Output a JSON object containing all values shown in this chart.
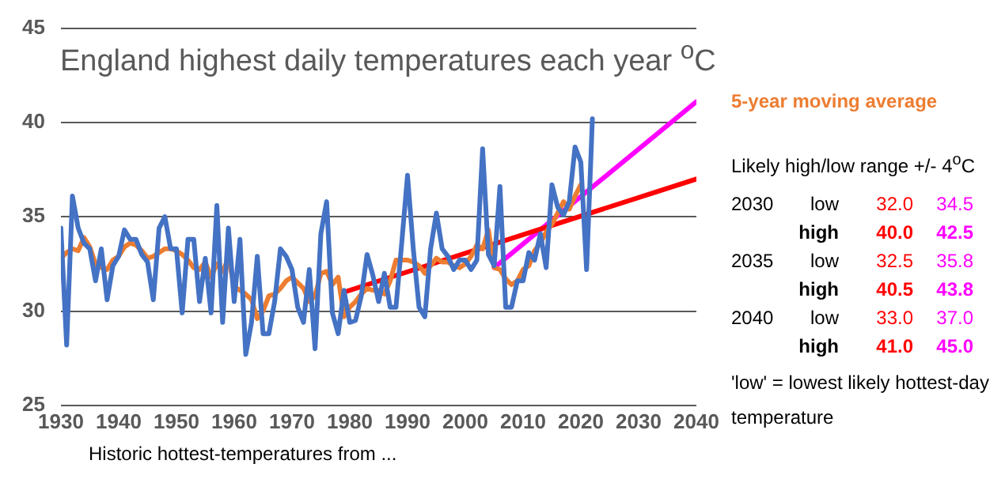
{
  "chart_data": {
    "type": "line",
    "title": "England highest daily temperatures each year $^{o}$C",
    "xlim": [
      1930,
      2040
    ],
    "xticks": [
      1930,
      1940,
      1950,
      1960,
      1970,
      1980,
      1990,
      2000,
      2010,
      2020,
      2030,
      2040
    ],
    "ylim": [
      25,
      45
    ],
    "yticks": [
      25,
      30,
      35,
      40,
      45
    ],
    "grid": "y",
    "marker": "none",
    "line_style": "solid",
    "series": [
      {
        "color": "#4472c4",
        "x": [
          1930,
          1931,
          1932,
          1933,
          1934,
          1935,
          1936,
          1937,
          1938,
          1939,
          1940,
          1941,
          1942,
          1943,
          1944,
          1945,
          1946,
          1947,
          1948,
          1949,
          1950,
          1951,
          1952,
          1953,
          1954,
          1955,
          1956,
          1957,
          1958,
          1959,
          1960,
          1961,
          1962,
          1963,
          1964,
          1965,
          1966,
          1967,
          1968,
          1969,
          1970,
          1971,
          1972,
          1973,
          1974,
          1975,
          1976,
          1977,
          1978,
          1979,
          1980,
          1981,
          1982,
          1983,
          1984,
          1985,
          1986,
          1987,
          1988,
          1989,
          1990,
          1991,
          1992,
          1993,
          1994,
          1995,
          1996,
          1997,
          1998,
          1999,
          2000,
          2001,
          2002,
          2003,
          2004,
          2005,
          2006,
          2007,
          2008,
          2009,
          2010,
          2011,
          2012,
          2013,
          2014,
          2015,
          2016,
          2017,
          2018,
          2019,
          2020,
          2021,
          2022
        ],
        "values": [
          34.4,
          28.2,
          36.1,
          34.4,
          33.6,
          33.3,
          31.6,
          33.3,
          30.6,
          32.4,
          32.9,
          34.3,
          33.8,
          33.8,
          33.0,
          32.6,
          30.6,
          34.4,
          35.0,
          33.3,
          33.3,
          29.9,
          33.8,
          33.8,
          30.5,
          32.8,
          29.9,
          35.6,
          29.4,
          34.4,
          30.5,
          33.8,
          27.7,
          29.4,
          32.9,
          28.8,
          28.8,
          30.5,
          33.3,
          32.9,
          32.2,
          30.2,
          29.4,
          32.2,
          28.0,
          34.1,
          35.8,
          29.9,
          28.8,
          31.1,
          29.4,
          29.5,
          30.8,
          33.0,
          31.9,
          30.5,
          32.0,
          30.2,
          30.2,
          33.6,
          37.2,
          33.3,
          30.2,
          29.7,
          33.3,
          35.2,
          33.3,
          32.9,
          32.2,
          32.7,
          32.7,
          32.2,
          32.7,
          38.6,
          33.0,
          32.4,
          36.6,
          30.2,
          30.2,
          31.6,
          31.6,
          33.1,
          32.7,
          34.1,
          32.3,
          36.7,
          35.5,
          35.1,
          35.8,
          38.7,
          37.9,
          32.2,
          40.2
        ]
      },
      {
        "name": "5-year moving average",
        "color": "#ed7d31",
        "x": [
          1930,
          1931,
          1932,
          1933,
          1934,
          1935,
          1936,
          1937,
          1938,
          1939,
          1940,
          1941,
          1942,
          1943,
          1944,
          1945,
          1946,
          1947,
          1948,
          1949,
          1950,
          1951,
          1952,
          1953,
          1954,
          1955,
          1956,
          1957,
          1958,
          1959,
          1960,
          1961,
          1962,
          1963,
          1964,
          1965,
          1966,
          1967,
          1968,
          1969,
          1970,
          1971,
          1972,
          1973,
          1974,
          1975,
          1976,
          1977,
          1978,
          1979,
          1980,
          1981,
          1982,
          1983,
          1984,
          1985,
          1986,
          1987,
          1988,
          1989,
          1990,
          1991,
          1992,
          1993,
          1994,
          1995,
          1996,
          1997,
          1998,
          1999,
          2000,
          2001,
          2002,
          2003,
          2004,
          2005,
          2006,
          2007,
          2008,
          2009,
          2010,
          2011,
          2012,
          2013,
          2014,
          2015,
          2016,
          2017,
          2018,
          2019,
          2020
        ],
        "values": [
          32.8,
          33.1,
          33.3,
          33.2,
          33.9,
          33.4,
          32.5,
          32.3,
          32.2,
          32.7,
          32.9,
          33.4,
          33.6,
          33.5,
          33.2,
          32.8,
          32.9,
          33.1,
          33.3,
          33.3,
          33.2,
          33.0,
          32.7,
          32.3,
          32.2,
          32.6,
          31.8,
          32.5,
          32.1,
          32.8,
          31.3,
          31.1,
          30.9,
          30.6,
          29.6,
          30.0,
          30.8,
          30.9,
          31.2,
          31.6,
          31.8,
          31.5,
          31.2,
          30.5,
          30.8,
          32.0,
          32.1,
          31.4,
          31.8,
          29.7,
          30.2,
          30.5,
          30.9,
          31.2,
          31.1,
          31.1,
          30.9,
          31.6,
          32.7,
          32.7,
          32.7,
          32.6,
          32.4,
          32.0,
          32.4,
          32.8,
          32.6,
          32.6,
          32.4,
          32.3,
          32.5,
          32.9,
          33.5,
          33.3,
          34.3,
          32.3,
          32.2,
          31.7,
          31.4,
          31.6,
          32.2,
          32.4,
          33.2,
          33.6,
          34.2,
          34.6,
          35.2,
          35.8,
          35.4,
          36.1,
          36.7
        ]
      },
      {
        "color": "#ff0000",
        "x": [
          1979,
          2040
        ],
        "values": [
          31.0,
          37.0
        ]
      },
      {
        "color": "#ff00ff",
        "x": [
          2005,
          2040
        ],
        "values": [
          32.3,
          41.1
        ]
      }
    ],
    "annotations": [
      "Likely high/low range +/- 4$^{o}$C",
      "2030",
      "low",
      "32.0",
      "34.5",
      "high",
      "40.0",
      "42.5",
      "2035",
      "low",
      "32.5",
      "35.8",
      "high",
      "40.5",
      "43.8",
      "2040",
      "low",
      "33.0",
      "37.0",
      "high",
      "41.0",
      "45.0",
      "'low' = lowest likely hottest-day temperature",
      "Historic hottest-temperatures from ..."
    ]
  }
}
